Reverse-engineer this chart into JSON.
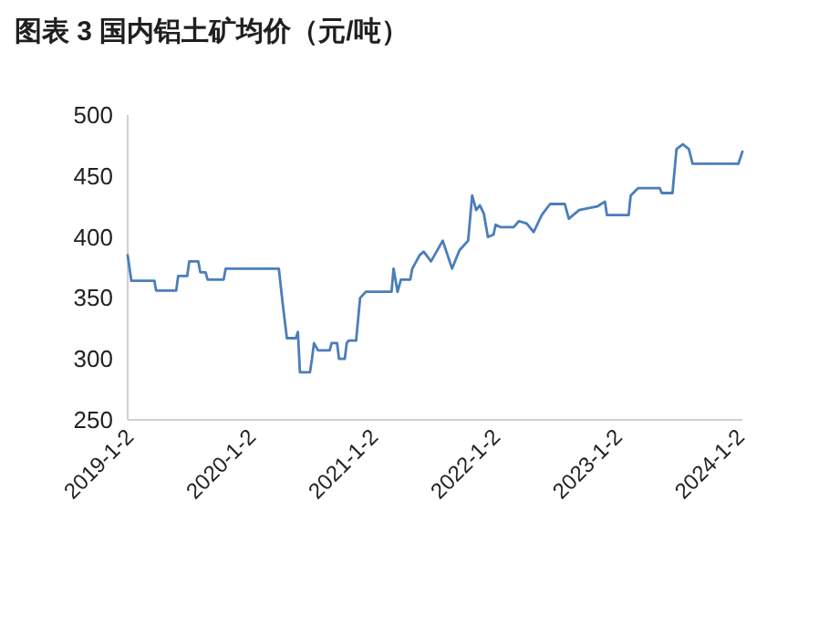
{
  "chart_data": {
    "type": "line",
    "title": "图表 3 国内铝土矿均价（元/吨）",
    "x": [
      "2019-01-02",
      "2019-01-13",
      "2019-03-23",
      "2019-03-28",
      "2019-05-27",
      "2019-06-02",
      "2019-06-29",
      "2019-07-05",
      "2019-08-01",
      "2019-08-07",
      "2019-08-23",
      "2019-08-29",
      "2019-10-16",
      "2019-10-22",
      "2020-03-29",
      "2020-04-10",
      "2020-04-22",
      "2020-05-19",
      "2020-05-25",
      "2020-05-31",
      "2020-06-30",
      "2020-07-06",
      "2020-07-12",
      "2020-07-24",
      "2020-08-28",
      "2020-09-03",
      "2020-09-19",
      "2020-09-25",
      "2020-10-12",
      "2020-10-18",
      "2020-10-24",
      "2020-11-15",
      "2020-11-27",
      "2020-12-14",
      "2021-03-01",
      "2021-03-07",
      "2021-03-19",
      "2021-03-29",
      "2021-04-26",
      "2021-05-02",
      "2021-05-24",
      "2021-06-05",
      "2021-06-27",
      "2021-08-01",
      "2021-08-29",
      "2021-09-20",
      "2021-10-16",
      "2021-10-28",
      "2021-11-09",
      "2021-11-20",
      "2021-12-02",
      "2021-12-14",
      "2021-12-31",
      "2022-01-06",
      "2022-01-22",
      "2022-03-01",
      "2022-03-17",
      "2022-04-09",
      "2022-04-30",
      "2022-05-24",
      "2022-06-18",
      "2022-08-01",
      "2022-08-13",
      "2022-09-13",
      "2022-11-06",
      "2022-11-29",
      "2022-12-05",
      "2023-02-08",
      "2023-02-14",
      "2023-03-08",
      "2023-05-12",
      "2023-05-18",
      "2023-06-19",
      "2023-07-01",
      "2023-07-20",
      "2023-08-07",
      "2023-08-18",
      "2024-01-02",
      "2024-01-14"
    ],
    "series": [
      {
        "color": "#4a7ebb",
        "values": [
          385,
          364,
          364,
          356,
          356,
          368,
          368,
          380,
          380,
          371,
          371,
          365,
          365,
          374,
          374,
          344,
          317,
          317,
          322,
          289,
          289,
          300,
          313,
          307,
          307,
          313,
          313,
          300,
          300,
          313,
          315,
          315,
          350,
          355,
          355,
          374,
          355,
          365,
          365,
          374,
          385,
          388,
          380,
          397,
          374,
          389,
          397,
          434,
          422,
          426,
          419,
          400,
          402,
          410,
          408,
          408,
          413,
          411,
          404,
          418,
          427,
          427,
          415,
          422,
          425,
          429,
          418,
          418,
          434,
          440,
          440,
          436,
          436,
          472,
          476,
          472,
          460,
          460,
          470
        ]
      }
    ],
    "xlim": [
      "2019-01-02",
      "2024-01-14"
    ],
    "xticks": [
      {
        "value": "2019-01-02",
        "label": "2019-1-2"
      },
      {
        "value": "2020-01-02",
        "label": "2020-1-2"
      },
      {
        "value": "2021-01-02",
        "label": "2021-1-2"
      },
      {
        "value": "2022-01-02",
        "label": "2022-1-2"
      },
      {
        "value": "2023-01-02",
        "label": "2023-1-2"
      },
      {
        "value": "2024-01-02",
        "label": "2024-1-2"
      }
    ],
    "ylim": [
      250,
      500
    ],
    "yticks": [
      250,
      300,
      350,
      400,
      450,
      500
    ],
    "grid": false,
    "line_style": "solid",
    "marker": "none"
  }
}
